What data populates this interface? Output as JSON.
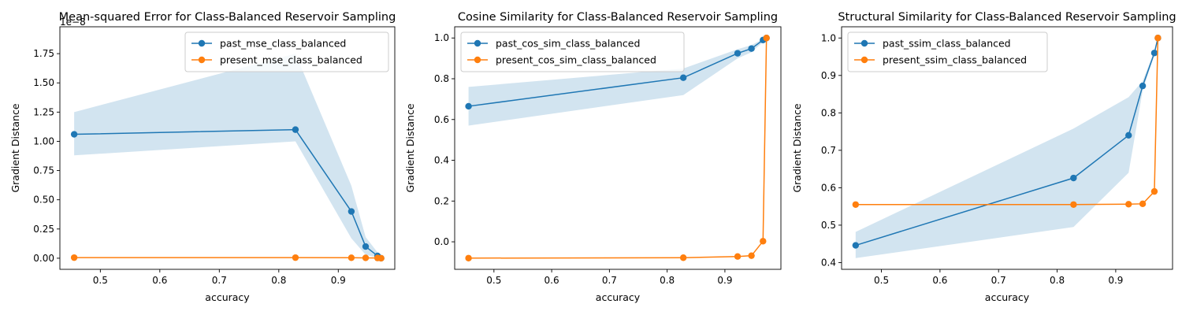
{
  "chart_data": [
    {
      "type": "line",
      "title": "Mean-squared Error for Class-Balanced Reservoir Sampling",
      "xlabel": "accuracy",
      "ylabel": "Gradient Distance",
      "offset_text": "1e−8",
      "xlim": [
        0.432,
        0.995
      ],
      "ylim": [
        -0.095,
        1.98
      ],
      "xticks": [
        0.5,
        0.6,
        0.7,
        0.8,
        0.9
      ],
      "xtick_labels": [
        "0.5",
        "0.6",
        "0.7",
        "0.8",
        "0.9"
      ],
      "yticks": [
        0.0,
        0.25,
        0.5,
        0.75,
        1.0,
        1.25,
        1.5,
        1.75
      ],
      "ytick_labels": [
        "0.00",
        "0.25",
        "0.50",
        "0.75",
        "1.00",
        "1.25",
        "1.50",
        "1.75"
      ],
      "legend": "top-right",
      "band": {
        "x": [
          0.456,
          0.828,
          0.922,
          0.946,
          0.966,
          0.972
        ],
        "lower": [
          0.88,
          1.0,
          0.17,
          0.03,
          0.005,
          0.0
        ],
        "upper": [
          1.25,
          1.75,
          0.62,
          0.18,
          0.05,
          0.02
        ]
      },
      "series": [
        {
          "name": "past_mse_class_balanced",
          "color": "#1f77b4",
          "x": [
            0.456,
            0.828,
            0.922,
            0.946,
            0.966,
            0.972
          ],
          "y": [
            1.06,
            1.1,
            0.4,
            0.1,
            0.02,
            0.0
          ]
        },
        {
          "name": "present_mse_class_balanced",
          "color": "#ff7f0e",
          "x": [
            0.456,
            0.828,
            0.922,
            0.946,
            0.966,
            0.972
          ],
          "y": [
            0.005,
            0.005,
            0.004,
            0.003,
            0.002,
            0.0
          ]
        }
      ]
    },
    {
      "type": "line",
      "title": "Cosine Similarity for Class-Balanced Reservoir Sampling",
      "xlabel": "accuracy",
      "ylabel": "Gradient Distance",
      "xlim": [
        0.432,
        0.997
      ],
      "ylim": [
        -0.135,
        1.055
      ],
      "xticks": [
        0.5,
        0.6,
        0.7,
        0.8,
        0.9
      ],
      "xtick_labels": [
        "0.5",
        "0.6",
        "0.7",
        "0.8",
        "0.9"
      ],
      "yticks": [
        0.0,
        0.2,
        0.4,
        0.6,
        0.8,
        1.0
      ],
      "ytick_labels": [
        "0.0",
        "0.2",
        "0.4",
        "0.6",
        "0.8",
        "1.0"
      ],
      "legend": "top-left",
      "band": {
        "x": [
          0.456,
          0.828,
          0.922,
          0.946,
          0.966,
          0.972
        ],
        "lower": [
          0.57,
          0.72,
          0.9,
          0.93,
          0.98,
          1.0
        ],
        "upper": [
          0.76,
          0.85,
          0.945,
          0.965,
          0.995,
          1.0
        ]
      },
      "series": [
        {
          "name": "past_cos_sim_class_balanced",
          "color": "#1f77b4",
          "x": [
            0.456,
            0.828,
            0.922,
            0.946,
            0.966,
            0.972
          ],
          "y": [
            0.665,
            0.805,
            0.925,
            0.948,
            0.99,
            1.0
          ]
        },
        {
          "name": "present_cos_sim_class_balanced",
          "color": "#ff7f0e",
          "x": [
            0.456,
            0.828,
            0.922,
            0.946,
            0.966,
            0.972
          ],
          "y": [
            -0.08,
            -0.078,
            -0.072,
            -0.068,
            0.003,
            1.0
          ]
        }
      ]
    },
    {
      "type": "line",
      "title": "Structural Similarity for Class-Balanced Reservoir Sampling",
      "xlabel": "accuracy",
      "ylabel": "Gradient Distance",
      "xlim": [
        0.432,
        0.997
      ],
      "ylim": [
        0.382,
        1.03
      ],
      "xticks": [
        0.5,
        0.6,
        0.7,
        0.8,
        0.9
      ],
      "xtick_labels": [
        "0.5",
        "0.6",
        "0.7",
        "0.8",
        "0.9"
      ],
      "yticks": [
        0.4,
        0.5,
        0.6,
        0.7,
        0.8,
        0.9,
        1.0
      ],
      "ytick_labels": [
        "0.4",
        "0.5",
        "0.6",
        "0.7",
        "0.8",
        "0.9",
        "1.0"
      ],
      "legend": "top-left",
      "band": {
        "x": [
          0.456,
          0.828,
          0.922,
          0.946,
          0.966,
          0.972
        ],
        "lower": [
          0.412,
          0.495,
          0.64,
          0.86,
          0.955,
          1.0
        ],
        "upper": [
          0.482,
          0.758,
          0.842,
          0.885,
          0.965,
          1.0
        ]
      },
      "series": [
        {
          "name": "past_ssim_class_balanced",
          "color": "#1f77b4",
          "x": [
            0.456,
            0.828,
            0.922,
            0.946,
            0.966,
            0.972
          ],
          "y": [
            0.446,
            0.626,
            0.74,
            0.872,
            0.96,
            1.0
          ]
        },
        {
          "name": "present_ssim_class_balanced",
          "color": "#ff7f0e",
          "x": [
            0.456,
            0.828,
            0.922,
            0.946,
            0.966,
            0.972
          ],
          "y": [
            0.555,
            0.555,
            0.556,
            0.557,
            0.59,
            1.0
          ]
        }
      ]
    }
  ]
}
